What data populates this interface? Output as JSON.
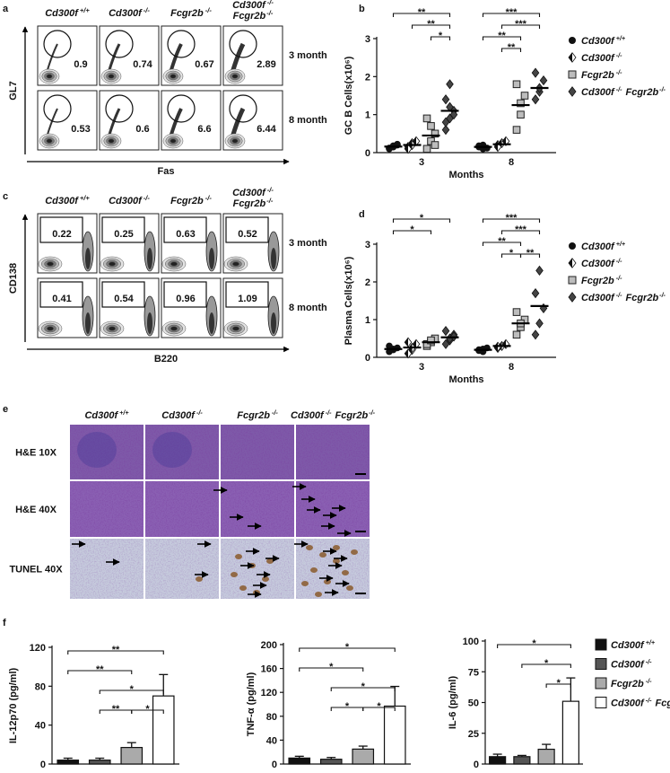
{
  "groups": [
    {
      "gene": "Cd300f",
      "sup": "+/+"
    },
    {
      "gene": "Cd300f",
      "sup": "-/-"
    },
    {
      "gene": "Fcgr2b",
      "sup": "-/-"
    },
    {
      "gene": "Cd300f",
      "sup": "-/-",
      "gene2": "Fcgr2b",
      "sup2": "-/-"
    }
  ],
  "flow": [
    {
      "letter": "a",
      "ylabel": "GL7",
      "xlabel": "Fas",
      "rows": [
        {
          "label": "3 month",
          "values": [
            0.9,
            0.74,
            0.67,
            2.89
          ]
        },
        {
          "label": "8 month",
          "values": [
            0.53,
            0.6,
            6.6,
            6.44
          ]
        }
      ]
    },
    {
      "letter": "c",
      "ylabel": "CD138",
      "xlabel": "B220",
      "rows": [
        {
          "label": "3 month",
          "values": [
            0.22,
            0.25,
            0.63,
            0.52
          ]
        },
        {
          "label": "8 month",
          "values": [
            0.41,
            0.54,
            0.96,
            1.09
          ]
        }
      ]
    }
  ],
  "histology": {
    "letter": "e",
    "rows": [
      "H&E 10X",
      "H&E 40X",
      "TUNEL 40X"
    ]
  },
  "chart_data": [
    {
      "letter": "b",
      "type": "dot",
      "ylabel": "GC B Cells(x10⁶)",
      "xlabel": "Months",
      "categories": [
        "3",
        "8"
      ],
      "ylim": [
        0,
        3
      ],
      "yticks": [
        0,
        1,
        2,
        3
      ],
      "series": [
        {
          "group": 0,
          "marker": "circle",
          "color": "#111111",
          "values": [
            0.16,
            0.15
          ],
          "points": [
            [
              0.1,
              0.15,
              0.2,
              0.12,
              0.18,
              0.22
            ],
            [
              0.15,
              0.2,
              0.12,
              0.18,
              0.1
            ]
          ]
        },
        {
          "group": 1,
          "marker": "half",
          "color": "#ffffff",
          "values": [
            0.2,
            0.22
          ],
          "points": [
            [
              0.15,
              0.25,
              0.3,
              0.1,
              0.2
            ],
            [
              0.2,
              0.25,
              0.3,
              0.15
            ]
          ]
        },
        {
          "group": 2,
          "marker": "square",
          "color": "#bdbdbd",
          "values": [
            0.45,
            1.25
          ],
          "points": [
            [
              0.1,
              0.3,
              0.5,
              0.9,
              0.7,
              0.2
            ],
            [
              0.6,
              1.0,
              1.5,
              1.8,
              1.3
            ]
          ]
        },
        {
          "group": 3,
          "marker": "diamond",
          "color": "#444444",
          "values": [
            1.1,
            1.7
          ],
          "points": [
            [
              0.6,
              0.9,
              1.1,
              1.4,
              1.8,
              1.0,
              0.8,
              1.2
            ],
            [
              1.4,
              1.6,
              1.9,
              2.1,
              1.7
            ]
          ]
        }
      ],
      "significance": [
        [
          {
            "from": 2,
            "to": 3,
            "label": "*"
          },
          {
            "from": 1,
            "to": 3,
            "label": "**"
          },
          {
            "from": 0,
            "to": 3,
            "label": "**"
          }
        ],
        [
          {
            "from": 1,
            "to": 2,
            "label": "**"
          },
          {
            "from": 0,
            "to": 2,
            "label": "**"
          },
          {
            "from": 1,
            "to": 3,
            "label": "***"
          },
          {
            "from": 0,
            "to": 3,
            "label": "***"
          }
        ]
      ]
    },
    {
      "letter": "d",
      "type": "dot",
      "ylabel": "Plasma Cells(x10⁶)",
      "xlabel": "Months",
      "categories": [
        "3",
        "8"
      ],
      "ylim": [
        0,
        3
      ],
      "yticks": [
        0,
        1,
        2,
        3
      ],
      "series": [
        {
          "group": 0,
          "marker": "circle",
          "color": "#111111",
          "values": [
            0.22,
            0.2
          ],
          "points": [
            [
              0.15,
              0.2,
              0.25,
              0.3,
              0.22
            ],
            [
              0.18,
              0.22,
              0.25,
              0.2,
              0.15
            ]
          ]
        },
        {
          "group": 1,
          "marker": "half",
          "color": "#ffffff",
          "values": [
            0.26,
            0.3
          ],
          "points": [
            [
              0.1,
              0.2,
              0.35,
              0.4,
              0.25
            ],
            [
              0.25,
              0.3,
              0.35,
              0.28
            ]
          ]
        },
        {
          "group": 2,
          "marker": "square",
          "color": "#bdbdbd",
          "values": [
            0.4,
            0.9
          ],
          "points": [
            [
              0.3,
              0.4,
              0.5,
              0.35,
              0.45
            ],
            [
              0.6,
              0.8,
              1.0,
              1.2,
              0.9
            ]
          ]
        },
        {
          "group": 3,
          "marker": "diamond",
          "color": "#444444",
          "values": [
            0.53,
            1.36
          ],
          "points": [
            [
              0.35,
              0.45,
              0.6,
              0.7,
              0.5,
              0.55
            ],
            [
              0.6,
              0.9,
              1.3,
              1.7,
              2.3
            ]
          ]
        }
      ],
      "significance": [
        [
          {
            "from": 0,
            "to": 2,
            "label": "*"
          },
          {
            "from": 0,
            "to": 3,
            "label": "*"
          }
        ],
        [
          {
            "from": 1,
            "to": 2,
            "label": "*"
          },
          {
            "from": 2,
            "to": 3,
            "label": "**"
          },
          {
            "from": 0,
            "to": 2,
            "label": "**"
          },
          {
            "from": 1,
            "to": 3,
            "label": "***"
          },
          {
            "from": 0,
            "to": 3,
            "label": "***"
          }
        ]
      ]
    },
    {
      "letter": "f",
      "type": "bar",
      "ylabel": "IL-12p70 (pg/ml)",
      "ylim": [
        0,
        120
      ],
      "yticks": [
        0,
        40,
        80,
        120
      ],
      "values": [
        4,
        4,
        17,
        70
      ],
      "errors": [
        2,
        2,
        5,
        22
      ],
      "colors": [
        "#111111",
        "#555555",
        "#aaaaaa",
        "#ffffff"
      ],
      "significance": [
        {
          "from": 2,
          "to": 3,
          "label": "*"
        },
        {
          "from": 1,
          "to": 2,
          "label": "**"
        },
        {
          "from": 1,
          "to": 3,
          "label": "*"
        },
        {
          "from": 0,
          "to": 2,
          "label": "**"
        },
        {
          "from": 0,
          "to": 3,
          "label": "**"
        }
      ]
    },
    {
      "type": "bar",
      "ylabel": "TNF-α (pg/ml)",
      "ylim": [
        0,
        200
      ],
      "yticks": [
        0,
        40,
        80,
        120,
        160,
        200
      ],
      "values": [
        10,
        8,
        25,
        97
      ],
      "errors": [
        3,
        3,
        5,
        33
      ],
      "colors": [
        "#111111",
        "#555555",
        "#aaaaaa",
        "#ffffff"
      ],
      "significance": [
        {
          "from": 2,
          "to": 3,
          "label": "*"
        },
        {
          "from": 1,
          "to": 2,
          "label": "*"
        },
        {
          "from": 1,
          "to": 3,
          "label": "*"
        },
        {
          "from": 0,
          "to": 2,
          "label": "*"
        },
        {
          "from": 0,
          "to": 3,
          "label": "*"
        }
      ]
    },
    {
      "type": "bar",
      "ylabel": "IL-6 (pg/ml)",
      "ylim": [
        0,
        100
      ],
      "yticks": [
        0,
        25,
        50,
        75,
        100
      ],
      "values": [
        6,
        6,
        12,
        51
      ],
      "errors": [
        2,
        1,
        4,
        19
      ],
      "colors": [
        "#111111",
        "#555555",
        "#aaaaaa",
        "#ffffff"
      ],
      "significance": [
        {
          "from": 2,
          "to": 3,
          "label": "*"
        },
        {
          "from": 1,
          "to": 3,
          "label": "*"
        },
        {
          "from": 0,
          "to": 3,
          "label": "*"
        }
      ]
    }
  ]
}
